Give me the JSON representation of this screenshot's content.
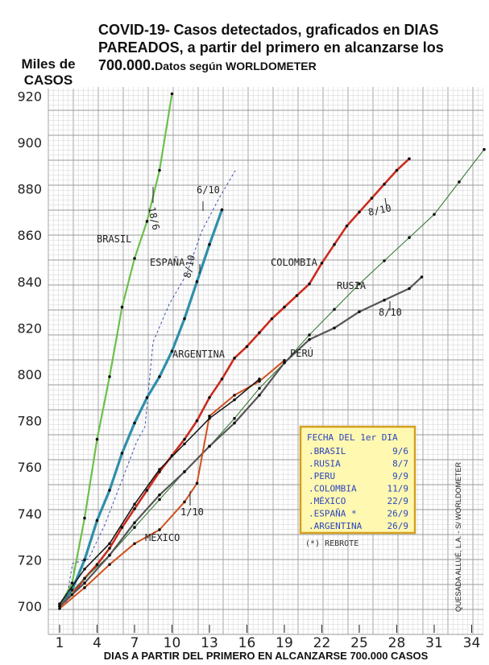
{
  "title": {
    "main_a": "COVID-19-",
    "main_b": "Casos detectados, graficados en DIAS PAREADOS, a partir del primero en alcanzarse los 700.000.",
    "source": "Datos según WORLDOMETER"
  },
  "ylabel": "Miles de CASOS",
  "xlabel": "DIAS A PARTIR DEL PRIMERO EN ALCANZARSE 700.000 CASOS",
  "author": "QUESADA ALLUÉ, L.A. - S/ WORLDOMETER",
  "colors": {
    "grid_minor": "#d2d2d2",
    "grid_major": "#9a9a9a",
    "brasil": "#6cc04a",
    "espana": "#2f8faa",
    "espana_dash": "#3a4fb0",
    "colombia": "#cc2b1d",
    "rusia": "#3a7a3a",
    "peru": "#555555",
    "mexico": "#d0501e",
    "argentina": "#111111",
    "legend_bg": "#fff8b0",
    "legend_border": "#d4a020",
    "legend_text": "#2c44c0"
  },
  "chart_data": {
    "type": "line",
    "title": "COVID-19- Casos detectados, graficados en DIAS PAREADOS, a partir del primero en alcanzarse los 700.000.Datos según WORLDOMETER",
    "xlabel": "DIAS A PARTIR DEL PRIMERO EN ALCANZARSE 700.000 CASOS",
    "ylabel": "Miles de CASOS",
    "xlim": [
      1,
      36
    ],
    "ylim": [
      697,
      930
    ],
    "x_ticks": [
      1,
      4,
      7,
      10,
      13,
      16,
      19,
      22,
      25,
      28,
      31,
      34
    ],
    "y_ticks": [
      700,
      720,
      740,
      760,
      780,
      800,
      820,
      840,
      860,
      880,
      900,
      920
    ],
    "grid": true,
    "series": [
      {
        "name": "BRASIL",
        "key": "brasil",
        "x": [
          1,
          2,
          3,
          4,
          5,
          6,
          7,
          8,
          9,
          10
        ],
        "y": [
          700,
          710,
          738,
          772,
          799,
          829,
          850,
          866,
          888,
          921
        ]
      },
      {
        "name": "ESPAÑA",
        "key": "espana",
        "x": [
          1,
          2,
          3,
          4,
          5,
          6,
          7,
          8,
          9,
          10,
          11,
          12,
          13,
          14
        ],
        "y": [
          700,
          707,
          720,
          737,
          750,
          766,
          779,
          790,
          799,
          810,
          824,
          840,
          856,
          871
        ]
      },
      {
        "name": "COLOMBIA",
        "key": "colombia",
        "x": [
          1,
          2,
          3,
          4,
          5,
          6,
          7,
          8,
          9,
          10,
          11,
          12,
          13,
          14,
          15,
          16,
          17,
          18,
          19,
          20,
          21,
          22,
          23,
          24,
          25,
          26,
          27,
          28,
          29
        ],
        "y": [
          700,
          705,
          712,
          718,
          725,
          734,
          742,
          750,
          758,
          765,
          772,
          780,
          790,
          798,
          807,
          812,
          818,
          824,
          829,
          834,
          839,
          848,
          856,
          864,
          870,
          876,
          882,
          888,
          893
        ]
      },
      {
        "name": "RUSIA",
        "key": "rusia",
        "x": [
          1,
          3,
          5,
          7,
          9,
          11,
          13,
          15,
          17,
          19,
          21,
          23,
          25,
          27,
          29,
          31,
          33,
          35
        ],
        "y": [
          701,
          712,
          722,
          734,
          746,
          758,
          769,
          781,
          794,
          805,
          817,
          828,
          839,
          849,
          859,
          869,
          883,
          897
        ]
      },
      {
        "name": "PERÚ",
        "key": "peru",
        "x": [
          1,
          3,
          5,
          7,
          9,
          11,
          13,
          15,
          17,
          19,
          21,
          23,
          25,
          27,
          29,
          30
        ],
        "y": [
          700,
          710,
          722,
          736,
          748,
          758,
          769,
          779,
          791,
          805,
          815,
          820,
          827,
          832,
          837,
          842
        ]
      },
      {
        "name": "MÉXICO",
        "key": "mexico",
        "x": [
          1,
          3,
          5,
          7,
          9,
          11,
          12,
          13,
          15,
          17,
          19
        ],
        "y": [
          699,
          708,
          718,
          727,
          733,
          745,
          753,
          782,
          791,
          797,
          806
        ]
      },
      {
        "name": "ARGENTINA",
        "key": "argentina",
        "x": [
          1,
          3,
          5,
          7,
          9,
          11,
          13,
          15,
          17
        ],
        "y": [
          701,
          716,
          727,
          744,
          759,
          770,
          781,
          789,
          798
        ]
      }
    ],
    "annotations": [
      {
        "text": "BRASIL",
        "key": "brasil"
      },
      {
        "text": "ESPAÑA",
        "key": "espana"
      },
      {
        "text": "COLOMBIA",
        "key": "colombia"
      },
      {
        "text": "RUSIA",
        "key": "rusia"
      },
      {
        "text": "PERÚ",
        "key": "peru"
      },
      {
        "text": "MÉXICO",
        "key": "mexico"
      },
      {
        "text": "ARGENTINA",
        "key": "argentina"
      },
      {
        "text": "18/6",
        "key": "note_brasil"
      },
      {
        "text": "6/10",
        "key": "note_espana_dash"
      },
      {
        "text": "8/10",
        "key": "note_espana"
      },
      {
        "text": "8/10",
        "key": "note_colombia"
      },
      {
        "text": "8/10",
        "key": "note_rusia"
      },
      {
        "text": "1/10",
        "key": "note_mexico"
      }
    ],
    "legend": {
      "title": "FECHA DEL 1er DIA",
      "position": "bottom-right",
      "entries": [
        {
          "name": "BRASIL",
          "date": "9/6"
        },
        {
          "name": "RUSIA",
          "date": "8/7"
        },
        {
          "name": "PERU",
          "date": "9/9"
        },
        {
          "name": "COLOMBIA",
          "date": "11/9"
        },
        {
          "name": "MÉXICO",
          "date": "22/9"
        },
        {
          "name": "ESPAÑA *",
          "date": "26/9"
        },
        {
          "name": "ARGENTINA",
          "date": "26/9"
        }
      ],
      "footnote": "(*) REBROTE"
    }
  }
}
